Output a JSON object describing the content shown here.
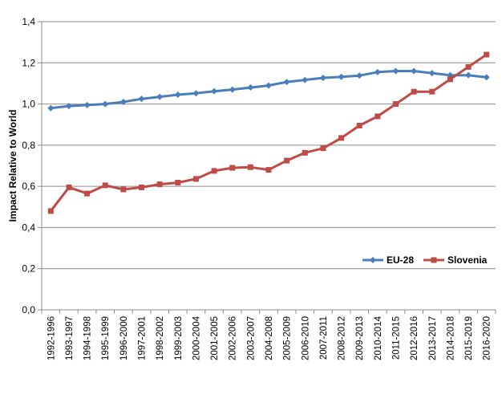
{
  "chart_data": {
    "type": "line",
    "ylabel": "Impact Relative to World",
    "xlabel": "",
    "ylim": [
      0,
      1.4
    ],
    "yticks": [
      "0,0",
      "0,2",
      "0,4",
      "0,6",
      "0,8",
      "1,0",
      "1,2",
      "1,4"
    ],
    "ytick_values": [
      0,
      0.2,
      0.4,
      0.6,
      0.8,
      1.0,
      1.2,
      1.4
    ],
    "grid": true,
    "legend_position": "bottom-right",
    "categories": [
      "1992-1996",
      "1993-1997",
      "1994-1998",
      "1995-1999",
      "1996-2000",
      "1997-2001",
      "1998-2002",
      "1999-2003",
      "2000-2004",
      "2001-2005",
      "2002-2006",
      "2003-2007",
      "2004-2008",
      "2005-2009",
      "2006-2010",
      "2007-2011",
      "2008-2012",
      "2009-2013",
      "2010-2014",
      "2011-2015",
      "2012-2016",
      "2013-2017",
      "2014-2018",
      "2015-2019",
      "2016-2020"
    ],
    "series": [
      {
        "name": "EU-28",
        "color": "#4a7ebb",
        "marker": "diamond",
        "values": [
          0.98,
          0.99,
          0.995,
          1.0,
          1.01,
          1.025,
          1.035,
          1.045,
          1.052,
          1.062,
          1.07,
          1.08,
          1.09,
          1.107,
          1.117,
          1.127,
          1.132,
          1.138,
          1.155,
          1.16,
          1.16,
          1.15,
          1.14,
          1.14,
          1.13
        ]
      },
      {
        "name": "Slovenia",
        "color": "#be4b48",
        "marker": "square",
        "values": [
          0.48,
          0.595,
          0.565,
          0.605,
          0.585,
          0.595,
          0.61,
          0.618,
          0.636,
          0.675,
          0.69,
          0.693,
          0.68,
          0.725,
          0.763,
          0.785,
          0.835,
          0.895,
          0.94,
          1.0,
          1.06,
          1.06,
          1.12,
          1.18,
          1.24
        ]
      }
    ]
  }
}
